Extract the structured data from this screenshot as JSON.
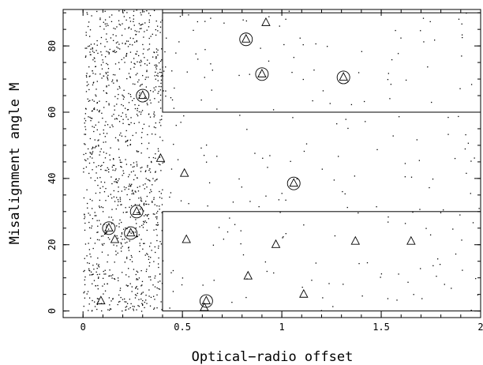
{
  "chart_data": {
    "type": "scatter",
    "xlabel": "Optical−radio offset",
    "ylabel": "Misalignment angle M",
    "xlim": [
      -0.1,
      2.0
    ],
    "ylim": [
      -2,
      91
    ],
    "x_ticks": [
      "0",
      "0.5",
      "1",
      "1.5",
      "2"
    ],
    "y_ticks": [
      "0",
      "20",
      "40",
      "60",
      "80"
    ],
    "boxes": [
      {
        "x": [
          0.4,
          2.0
        ],
        "y": [
          60,
          90
        ]
      },
      {
        "x": [
          0.4,
          2.0
        ],
        "y": [
          0,
          30
        ]
      }
    ],
    "series": [
      {
        "marker": "triangle",
        "points": [
          [
            0.92,
            87
          ],
          [
            0.39,
            46
          ],
          [
            0.51,
            41.5
          ],
          [
            0.52,
            21.5
          ],
          [
            0.16,
            21.5
          ],
          [
            0.97,
            20
          ],
          [
            1.37,
            21
          ],
          [
            1.65,
            21
          ],
          [
            0.83,
            10.5
          ],
          [
            1.11,
            5
          ],
          [
            0.09,
            3
          ],
          [
            0.61,
            1
          ]
        ]
      },
      {
        "marker": "circled-triangle",
        "points": [
          [
            0.82,
            82
          ],
          [
            0.9,
            71.5
          ],
          [
            1.31,
            70.5
          ],
          [
            0.3,
            65
          ],
          [
            1.06,
            38.5
          ],
          [
            0.27,
            30
          ],
          [
            0.13,
            25
          ],
          [
            0.24,
            23.5
          ],
          [
            0.62,
            3
          ]
        ]
      },
      {
        "marker": "dot",
        "dense_region": {
          "x": [
            0.0,
            0.4
          ],
          "y": [
            0,
            91
          ],
          "count": 1100
        },
        "sparse_region": {
          "x": [
            0.4,
            2.0
          ],
          "y": [
            0,
            91
          ],
          "count": 230
        }
      }
    ]
  }
}
